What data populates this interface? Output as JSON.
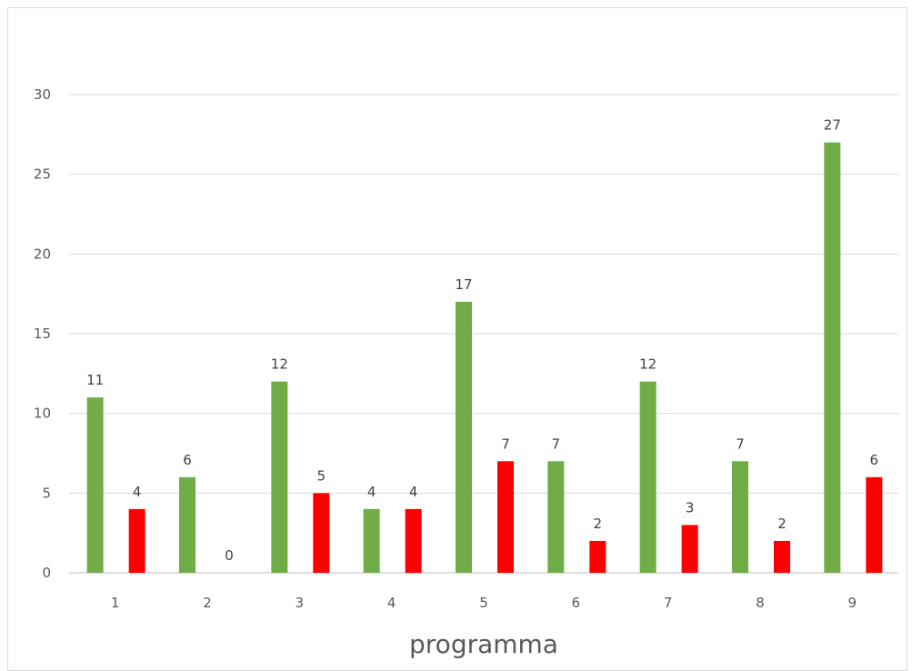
{
  "chart_data": {
    "type": "bar",
    "categories": [
      "1",
      "2",
      "3",
      "4",
      "5",
      "6",
      "7",
      "8",
      "9"
    ],
    "series": [
      {
        "values": [
          11,
          6,
          12,
          4,
          17,
          7,
          12,
          7,
          27
        ],
        "color": "#70ad47"
      },
      {
        "values": [
          4,
          0,
          5,
          4,
          7,
          2,
          3,
          2,
          6
        ],
        "color": "#ff0000"
      }
    ],
    "xlabel": "programma",
    "ylabel": "",
    "ylim": [
      0,
      30
    ],
    "yticks": [
      0,
      5,
      10,
      15,
      20,
      25,
      30
    ],
    "grid": true,
    "data_labels": true
  }
}
